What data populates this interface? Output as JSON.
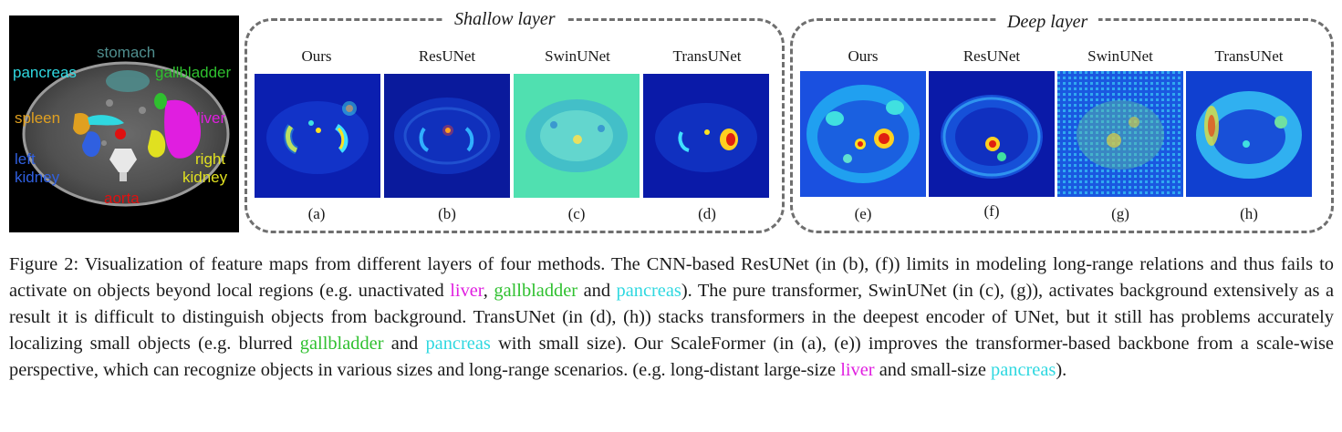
{
  "ct_panel": {
    "labels": {
      "stomach": "stomach",
      "pancreas": "pancreas",
      "gallbladder": "gallbladder",
      "spleen": "spleen",
      "liver": "liver",
      "left_kidney_line1": "left",
      "left_kidney_line2": "kidney",
      "right_kidney_line1": "right",
      "right_kidney_line2": "kidney",
      "aorta": "aorta"
    },
    "colors": {
      "stomach": "#4f8e8e",
      "pancreas": "#2fd8e0",
      "gallbladder": "#2fc02f",
      "spleen": "#e0a020",
      "liver": "#e01ee0",
      "left_kidney": "#3060e0",
      "right_kidney": "#e0e020",
      "aorta": "#e01010"
    }
  },
  "groups": {
    "shallow_title": "Shallow layer",
    "deep_title": "Deep layer"
  },
  "methods": [
    "Ours",
    "ResUNet",
    "SwinUNet",
    "TransUNet"
  ],
  "subfigure_labels": [
    "(a)",
    "(b)",
    "(c)",
    "(d)",
    "(e)",
    "(f)",
    "(g)",
    "(h)"
  ],
  "caption": {
    "s1": "Figure 2: Visualization of feature maps from different layers of four methods. The CNN-based ResUNet (in (b), (f)) limits in modeling long-range relations and thus fails to activate on objects beyond local regions (e.g. unactivated ",
    "w_liver": "liver",
    "s2": ", ",
    "w_gall": "gallbladder",
    "s3": " and ",
    "w_panc": "pancreas",
    "s4": "). The pure transformer, SwinUNet (in (c), (g)), activates background extensively as a result it is difficult to distinguish objects from background. TransUNet (in (d), (h)) stacks transformers in the deepest encoder of UNet, but it still has problems accurately localizing small objects (e.g. blurred ",
    "w_gall2": "gallbladder",
    "s5": " and ",
    "w_panc2": "pancreas",
    "s6": " with small size). Our ScaleFormer (in (a), (e)) improves the transformer-based backbone from a scale-wise perspective, which can recognize objects in various sizes and long-range scenarios. (e.g. long-distant large-size ",
    "w_liver2": "liver",
    "s7": " and small-size ",
    "w_panc3": "pancreas",
    "s8": ")."
  },
  "colors": {
    "liver": "#e01ee0",
    "gallbladder": "#2fc02f",
    "pancreas": "#2fd8e0",
    "dashed_border": "#6f6f6f"
  }
}
